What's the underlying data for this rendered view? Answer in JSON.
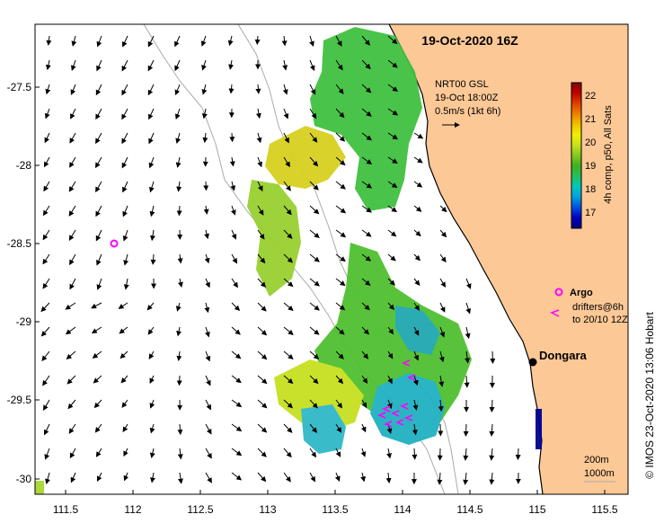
{
  "map": {
    "title": "19-Oct-2020 16Z",
    "product": {
      "line1": "NRT00 GSL",
      "line2": "19-Oct 18:00Z",
      "line3": "0.5m/s (1kt 6h)"
    },
    "colorbar": {
      "label": "4h comp, p50, All Sats",
      "ticks": [
        "22",
        "21",
        "20",
        "19",
        "18",
        "17"
      ],
      "colors": [
        "#000080",
        "#0000c0",
        "#0050e0",
        "#00a0e0",
        "#00c8c0",
        "#20c060",
        "#40b020",
        "#80c820",
        "#c8e020",
        "#f0f000",
        "#f0c000",
        "#f08000",
        "#e04000",
        "#c00000",
        "#800000"
      ]
    },
    "legend": {
      "argo_label": "Argo",
      "drifters_line1": "drifters@6h",
      "drifters_line2": "to 20/10 12Z"
    },
    "place": "Dongara",
    "scale": {
      "line1": "200m",
      "line2": "1000m"
    },
    "credit": "© IMOS 23-Oct-2020 13:06 Hobart",
    "x_ticks": [
      "111.5",
      "112",
      "112.5",
      "113",
      "113.5",
      "114",
      "114.5",
      "115",
      "115.5"
    ],
    "y_ticks": [
      "-27.5",
      "-28",
      "-28.5",
      "-29",
      "-29.5",
      "-30"
    ],
    "colors": {
      "land": "#fcc896",
      "coast": "#000000",
      "isobath": "#aaaaaa",
      "argo": "#ff00ff",
      "drifter": "#ff00ff"
    }
  }
}
